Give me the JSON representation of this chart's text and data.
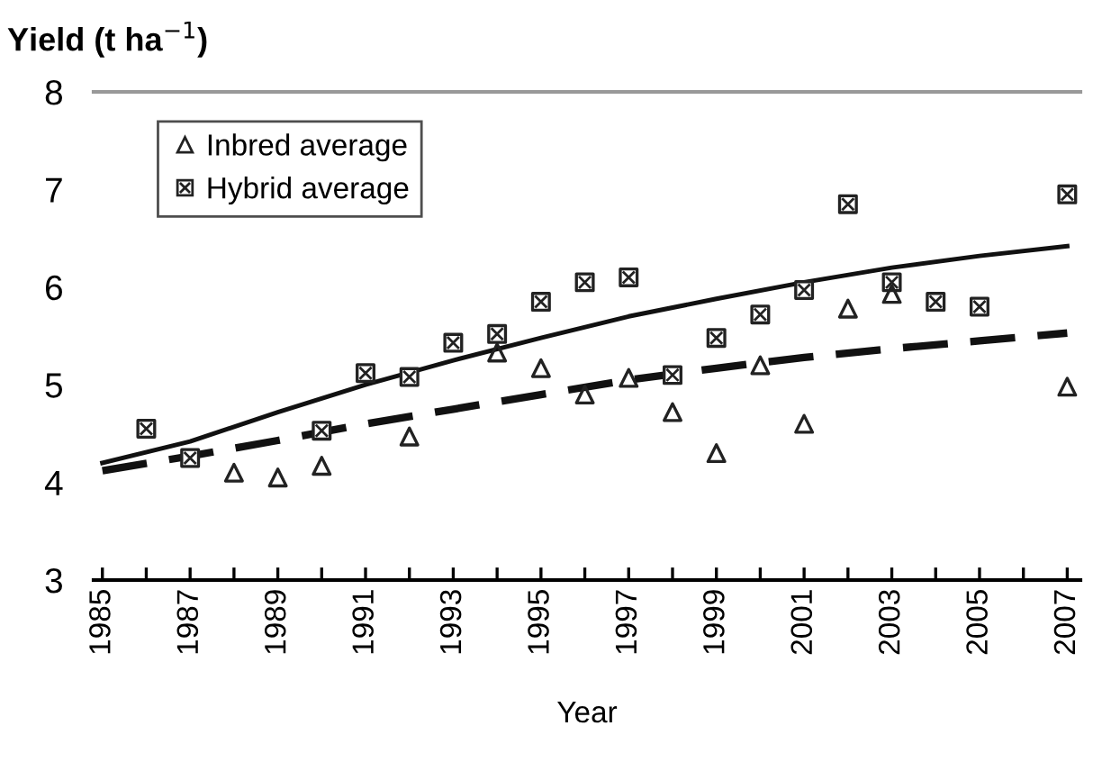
{
  "chart_data": {
    "type": "scatter",
    "ylabel": "Yield (t ha$^{−1}$)",
    "xlabel": "Year",
    "xlim": [
      1984.8,
      2007.3
    ],
    "ylim": [
      3,
      8
    ],
    "yticks": [
      3,
      4,
      5,
      6,
      7,
      8
    ],
    "xticks": [
      1985,
      {
        "value": 1986,
        "label": null
      },
      1987,
      {
        "value": 1988,
        "label": null
      },
      1989,
      {
        "value": 1990,
        "label": null
      },
      1991,
      {
        "value": 1992,
        "label": null
      },
      1993,
      {
        "value": 1994,
        "label": null
      },
      1995,
      {
        "value": 1996,
        "label": null
      },
      1997,
      {
        "value": 1998,
        "label": null
      },
      1999,
      {
        "value": 2000,
        "label": null
      },
      2001,
      {
        "value": 2002,
        "label": null
      },
      2003,
      {
        "value": 2004,
        "label": null
      },
      2005,
      {
        "value": 2006,
        "label": null
      },
      2007
    ],
    "legend": "top left",
    "grid": false,
    "series": [
      {
        "name": "Inbred average",
        "marker": "triangle",
        "color": "#222222",
        "x": [
          1988,
          1989,
          1990,
          1992,
          1994,
          1995,
          1996,
          1997,
          1998,
          1999,
          2000,
          2001,
          2002,
          2003,
          2007
        ],
        "values": [
          4.1,
          4.05,
          4.17,
          4.47,
          5.33,
          5.17,
          4.9,
          5.07,
          4.72,
          4.3,
          5.2,
          4.6,
          5.78,
          5.93,
          4.98
        ]
      },
      {
        "name": "Hybrid average",
        "marker": "square",
        "color": "#222222",
        "x": [
          1986,
          1987,
          1990,
          1991,
          1992,
          1993,
          1994,
          1995,
          1996,
          1997,
          1998,
          1999,
          2000,
          2001,
          2002,
          2003,
          2004,
          2005,
          2007
        ],
        "values": [
          4.55,
          4.25,
          4.53,
          5.12,
          5.08,
          5.43,
          5.52,
          5.85,
          6.05,
          6.1,
          5.1,
          5.48,
          5.72,
          5.97,
          6.85,
          6.05,
          5.85,
          5.8,
          6.95
        ]
      },
      {
        "type": "line",
        "line_style": "solid",
        "color": "#111111",
        "x": [
          1985,
          1987,
          1989,
          1991,
          1993,
          1995,
          1997,
          1999,
          2001,
          2003,
          2005,
          2007
        ],
        "values": [
          4.2,
          4.42,
          4.72,
          5.0,
          5.25,
          5.48,
          5.7,
          5.88,
          6.05,
          6.2,
          6.32,
          6.42
        ]
      },
      {
        "type": "line",
        "line_style": "dashed",
        "color": "#111111",
        "x": [
          1985,
          1987,
          1989,
          1991,
          1993,
          1995,
          1997,
          1999,
          2001,
          2003,
          2005,
          2007
        ],
        "values": [
          4.12,
          4.27,
          4.43,
          4.6,
          4.75,
          4.9,
          5.05,
          5.17,
          5.28,
          5.37,
          5.45,
          5.53
        ]
      }
    ]
  }
}
